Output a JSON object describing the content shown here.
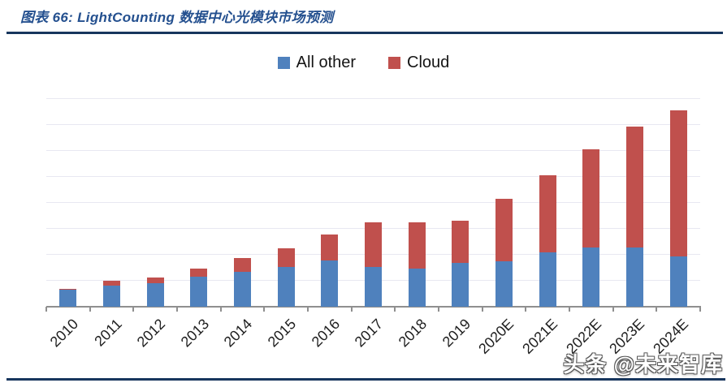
{
  "figure": {
    "title": "图表 66: LightCounting 数据中心光模块市场预测",
    "watermark": "头条 @未来智库"
  },
  "legend": {
    "items": [
      {
        "label": "All other",
        "color": "#4F81BD"
      },
      {
        "label": "Cloud",
        "color": "#C0504D"
      }
    ],
    "position": "top-center"
  },
  "chart_data": {
    "type": "bar",
    "stacked": true,
    "title": "",
    "xlabel": "",
    "ylabel": "",
    "categories": [
      "2010",
      "2011",
      "2012",
      "2013",
      "2014",
      "2015",
      "2016",
      "2017",
      "2018",
      "2019",
      "2020E",
      "2021E",
      "2022E",
      "2023E",
      "2024E"
    ],
    "series": [
      {
        "name": "All other",
        "color": "#4F81BD",
        "values": [
          0.67,
          0.8,
          0.92,
          1.17,
          1.34,
          1.52,
          1.77,
          1.52,
          1.48,
          1.68,
          1.76,
          2.08,
          2.27,
          2.29,
          1.95
        ]
      },
      {
        "name": "Cloud",
        "color": "#C0504D",
        "values": [
          0.03,
          0.18,
          0.21,
          0.31,
          0.54,
          0.72,
          0.99,
          1.71,
          1.79,
          1.64,
          2.4,
          2.98,
          3.79,
          4.67,
          5.61
        ]
      }
    ],
    "ylim": [
      0,
      8.8
    ],
    "gridline_step": 1,
    "grid": true,
    "y_axis_labels_visible": false,
    "legend_position": "top-center",
    "x_tick_label_rotation_deg": 45
  },
  "style_colors": {
    "title_blue": "#24508F",
    "rule_navy": "#17365D",
    "bar_blue": "#4F81BD",
    "bar_red": "#C0504D",
    "gridline": "#E8E8F1",
    "axis_gray": "#8F8F8F"
  }
}
